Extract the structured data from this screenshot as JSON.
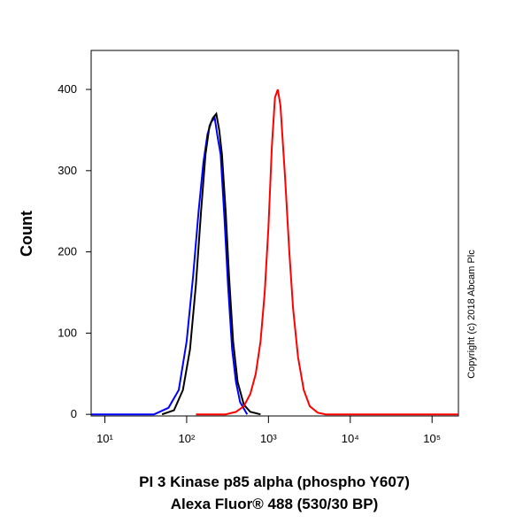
{
  "chart_data": {
    "type": "line",
    "ylabel": "Count",
    "xlabel": [
      "PI 3 Kinase p85 alpha (phospho Y607)",
      "Alexa Fluor® 488 (530/30 BP)"
    ],
    "annotation": "Copyright (c) 2018 Abcam Plc",
    "xscale": "log",
    "xlim": [
      6.8,
      210000
    ],
    "ylim": [
      -2,
      448
    ],
    "xticks": [
      {
        "value": 10,
        "label": "10¹"
      },
      {
        "value": 100,
        "label": "10²"
      },
      {
        "value": 1000,
        "label": "10³"
      },
      {
        "value": 10000,
        "label": "10⁴"
      },
      {
        "value": 100000,
        "label": "10⁵"
      }
    ],
    "yticks": [
      0,
      100,
      200,
      300,
      400
    ],
    "series": [
      {
        "color": "#0000ff",
        "x": [
          6.8,
          40,
          60,
          80,
          100,
          120,
          140,
          160,
          180,
          200,
          220,
          240,
          260,
          290,
          320,
          360,
          400,
          450,
          550
        ],
        "values": [
          0,
          0,
          8,
          30,
          90,
          170,
          250,
          310,
          345,
          360,
          365,
          340,
          320,
          240,
          160,
          80,
          40,
          15,
          0
        ]
      },
      {
        "color": "#000000",
        "x": [
          50,
          70,
          90,
          110,
          130,
          150,
          170,
          190,
          210,
          230,
          250,
          270,
          300,
          330,
          370,
          420,
          500,
          600,
          800
        ],
        "values": [
          0,
          5,
          30,
          80,
          160,
          250,
          320,
          355,
          365,
          370,
          350,
          320,
          250,
          170,
          90,
          40,
          12,
          3,
          0
        ]
      },
      {
        "color": "#ff0000",
        "x": [
          130,
          300,
          400,
          500,
          600,
          700,
          800,
          900,
          1000,
          1100,
          1200,
          1300,
          1400,
          1600,
          1800,
          2000,
          2300,
          2700,
          3200,
          4000,
          5000,
          210000
        ],
        "values": [
          0,
          0,
          3,
          10,
          25,
          50,
          90,
          150,
          230,
          330,
          390,
          400,
          380,
          290,
          200,
          130,
          70,
          30,
          10,
          2,
          0,
          0
        ]
      }
    ]
  }
}
